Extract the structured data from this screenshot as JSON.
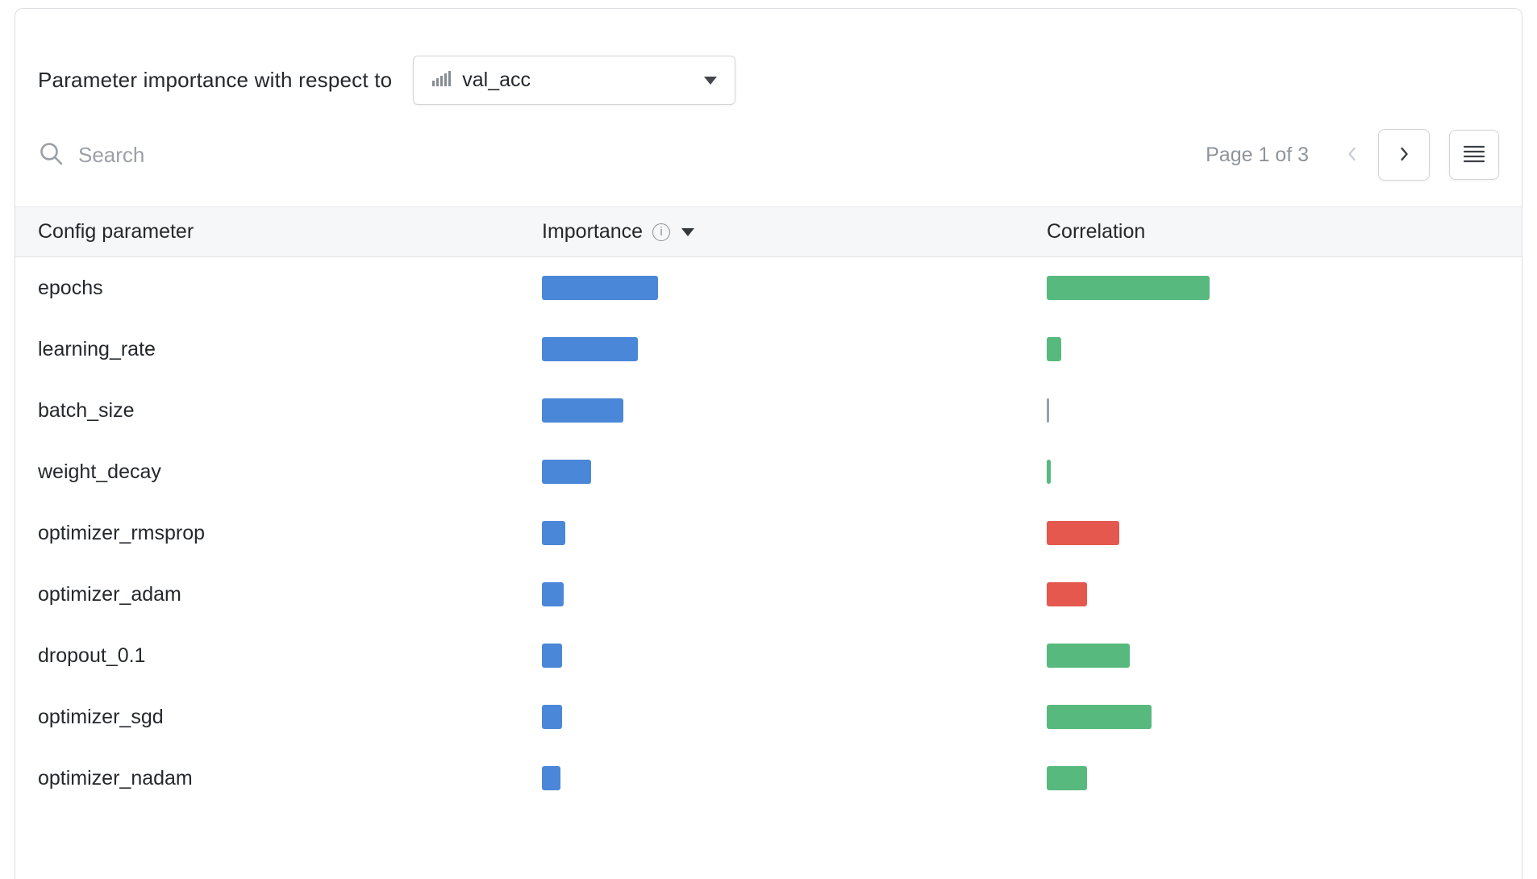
{
  "panel": {
    "title": "Parameter importance with respect to",
    "metric_selector": {
      "value": "val_acc",
      "icon": "bar-chart-icon"
    }
  },
  "toolbar": {
    "search": {
      "placeholder": "Search"
    },
    "pagination": {
      "label": "Page 1 of 3"
    }
  },
  "table": {
    "columns": {
      "parameter": "Config parameter",
      "importance": "Importance",
      "correlation": "Correlation"
    }
  },
  "chart_data": {
    "type": "bar",
    "title": "Parameter importance with respect to val_acc",
    "metric": "val_acc",
    "rows": [
      {
        "parameter": "epochs",
        "importance": 0.4,
        "correlation": 0.56
      },
      {
        "parameter": "learning_rate",
        "importance": 0.33,
        "correlation": 0.05
      },
      {
        "parameter": "batch_size",
        "importance": 0.28,
        "correlation": 0.005
      },
      {
        "parameter": "weight_decay",
        "importance": 0.17,
        "correlation": 0.015
      },
      {
        "parameter": "optimizer_rmsprop",
        "importance": 0.08,
        "correlation": -0.25
      },
      {
        "parameter": "optimizer_adam",
        "importance": 0.075,
        "correlation": -0.14
      },
      {
        "parameter": "dropout_0.1",
        "importance": 0.07,
        "correlation": 0.285
      },
      {
        "parameter": "optimizer_sgd",
        "importance": 0.07,
        "correlation": 0.36
      },
      {
        "parameter": "optimizer_nadam",
        "importance": 0.065,
        "correlation": 0.14
      }
    ],
    "colors": {
      "importance": "#4a87d8",
      "correlation_positive": "#58b97e",
      "correlation_negative": "#e4584e",
      "correlation_neutral": "#9aa0a6"
    }
  }
}
